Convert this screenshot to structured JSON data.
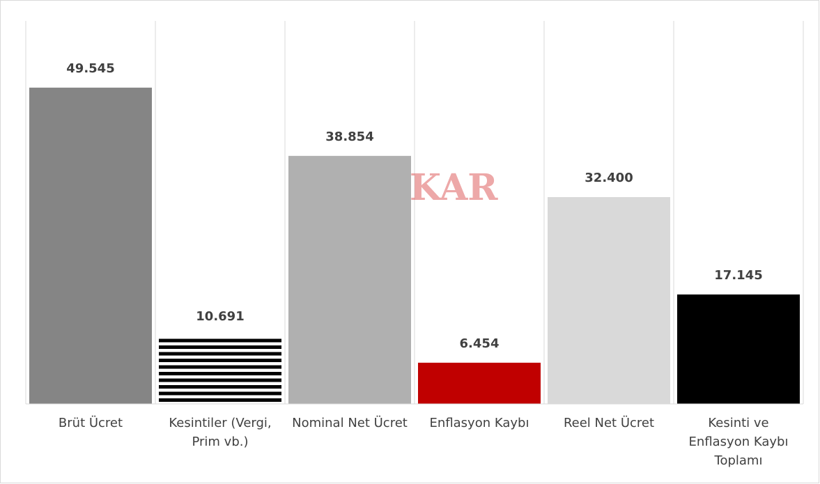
{
  "chart_data": {
    "type": "bar",
    "categories": [
      "Brüt Ücret",
      "Kesintiler (Vergi, Prim vb.)",
      "Nominal Net Ücret",
      "Enflasyon Kaybı",
      "Reel Net Ücret",
      "Kesinti ve Enflasyon Kaybı Toplamı"
    ],
    "values": [
      49545,
      10691,
      38854,
      6454,
      32400,
      17145
    ],
    "value_labels": [
      "49.545",
      "10.691",
      "38.854",
      "6.454",
      "32.400",
      "17.145"
    ],
    "colors": [
      "#858585",
      "#000000",
      "#b0b0b0",
      "#c00000",
      "#d9d9d9",
      "#000000"
    ],
    "patterns": [
      null,
      "horizontal-lines",
      null,
      null,
      null,
      null
    ],
    "ylim": [
      0,
      60000
    ],
    "watermark": "DiSKAR"
  }
}
